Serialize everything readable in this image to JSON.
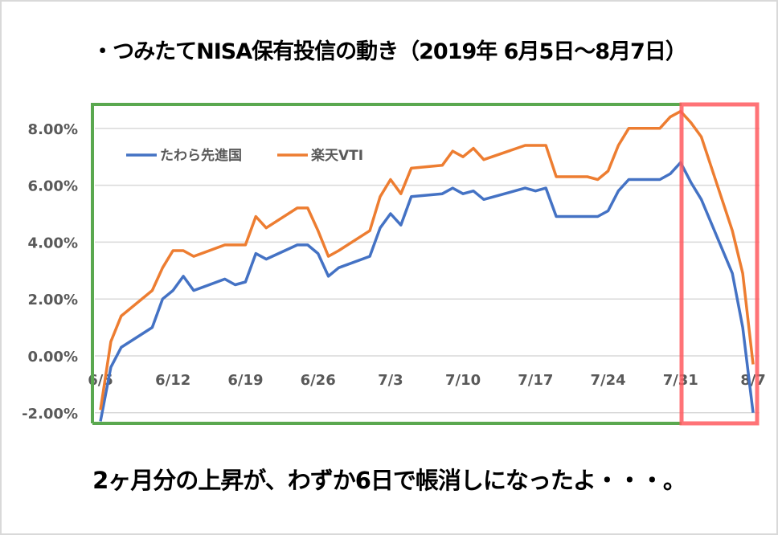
{
  "title": "・つみたてNISA保有投信の動き（2019年 6月5日〜8月7日）",
  "caption": "2ヶ月分の上昇が、わずか6日で帳消しになったよ・・・。",
  "colors": {
    "series_blue": "#4472c4",
    "series_orange": "#ed7d31",
    "highlight_green": "#5aa84f",
    "highlight_red": "#ff5a5f",
    "gridline": "#d9d9d9",
    "axis_text": "#595959"
  },
  "chart_data": {
    "type": "line",
    "title": "つみたてNISA保有投信の動き（2019年 6月5日〜8月7日）",
    "xlabel": "",
    "ylabel": "",
    "ylim": [
      -2.0,
      8.0
    ],
    "grid": true,
    "legend_position": "top-left inside",
    "y_ticks": [
      "8.00%",
      "6.00%",
      "4.00%",
      "2.00%",
      "0.00%",
      "-2.00%"
    ],
    "x_ticks": [
      "6/5",
      "6/12",
      "6/19",
      "6/26",
      "7/3",
      "7/10",
      "7/17",
      "7/24",
      "7/31",
      "8/7"
    ],
    "x": [
      "6/5",
      "6/6",
      "6/7",
      "6/10",
      "6/11",
      "6/12",
      "6/13",
      "6/14",
      "6/17",
      "6/18",
      "6/19",
      "6/20",
      "6/21",
      "6/24",
      "6/25",
      "6/26",
      "6/27",
      "6/28",
      "7/1",
      "7/2",
      "7/3",
      "7/4",
      "7/5",
      "7/8",
      "7/9",
      "7/10",
      "7/11",
      "7/12",
      "7/16",
      "7/17",
      "7/18",
      "7/19",
      "7/22",
      "7/23",
      "7/24",
      "7/25",
      "7/26",
      "7/29",
      "7/30",
      "7/31",
      "8/1",
      "8/2",
      "8/5",
      "8/6",
      "8/7"
    ],
    "series": [
      {
        "name": "たわら先進国",
        "color": "#4472c4",
        "values": [
          -2.3,
          -0.4,
          0.3,
          1.0,
          2.0,
          2.3,
          2.8,
          2.3,
          2.7,
          2.5,
          2.6,
          3.6,
          3.4,
          3.9,
          3.9,
          3.6,
          2.8,
          3.1,
          3.5,
          4.5,
          5.0,
          4.6,
          5.6,
          5.7,
          5.9,
          5.7,
          5.8,
          5.5,
          5.9,
          5.8,
          5.9,
          4.9,
          4.9,
          4.9,
          5.1,
          5.8,
          6.2,
          6.2,
          6.4,
          6.8,
          6.1,
          5.5,
          2.9,
          1.0,
          -2.0
        ]
      },
      {
        "name": "楽天VTI",
        "color": "#ed7d31",
        "values": [
          -1.9,
          0.5,
          1.4,
          2.3,
          3.1,
          3.7,
          3.7,
          3.5,
          3.9,
          3.9,
          3.9,
          4.9,
          4.5,
          5.2,
          5.2,
          4.4,
          3.5,
          3.7,
          4.4,
          5.6,
          6.2,
          5.7,
          6.6,
          6.7,
          7.2,
          7.0,
          7.3,
          6.9,
          7.4,
          7.4,
          7.4,
          6.3,
          6.3,
          6.2,
          6.5,
          7.4,
          8.0,
          8.0,
          8.4,
          8.6,
          8.2,
          7.7,
          4.4,
          2.9,
          -0.3
        ]
      }
    ],
    "annotations": [
      {
        "type": "rectangle",
        "color": "green",
        "range": [
          "6/5",
          "7/31"
        ],
        "meaning": "2ヶ月分の上昇"
      },
      {
        "type": "rectangle",
        "color": "red",
        "range": [
          "7/31",
          "8/7"
        ],
        "meaning": "わずか6日で帳消し"
      }
    ]
  },
  "legend": [
    {
      "label": "たわら先進国",
      "color": "#4472c4"
    },
    {
      "label": "楽天VTI",
      "color": "#ed7d31"
    }
  ]
}
